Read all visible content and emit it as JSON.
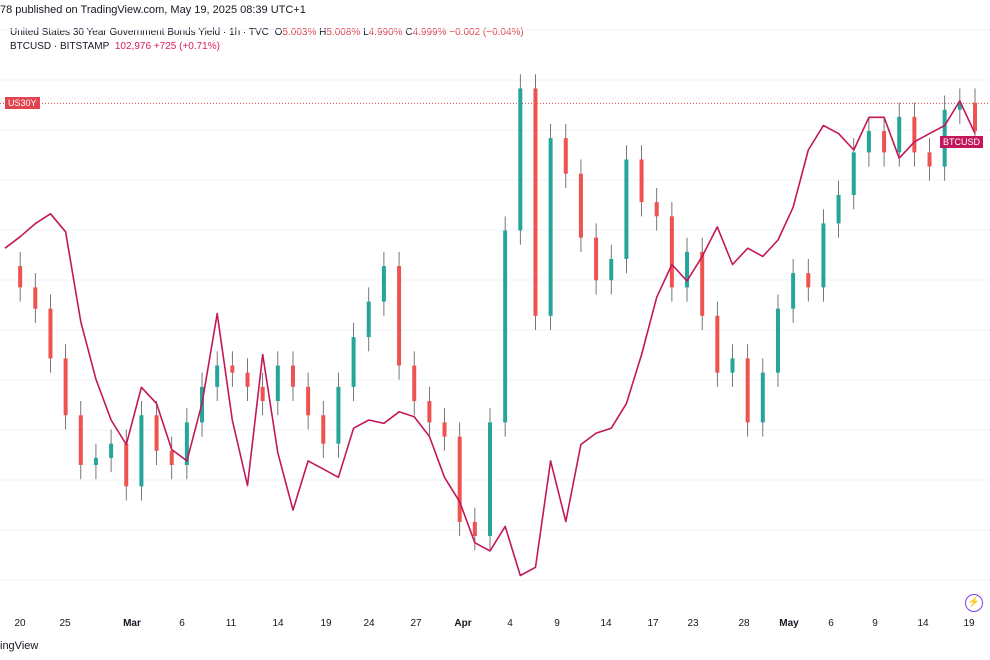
{
  "header": {
    "published": "78 published on TradingView.com, May 19, 2025 08:39 UTC+1"
  },
  "legend": {
    "us30y": {
      "name": "United States 30 Year Government Bonds Yield · 1h · TVC",
      "o_label": "O",
      "o": "5.003%",
      "h_label": "H",
      "h": "5.008%",
      "l_label": "L",
      "l": "4.990%",
      "c_label": "C",
      "c": "4.999%",
      "change": "−0.002 (−0.04%)"
    },
    "btc": {
      "name": "BTCUSD · BITSTAMP",
      "price": "102,976",
      "change": "+725 (+0.71%)"
    }
  },
  "badges": {
    "us30y": "US30Y",
    "btcusd": "BTCUSD"
  },
  "footer": "ingView",
  "colors": {
    "btc_line": "#c2185b",
    "candle_up": "#26a69a",
    "candle_down": "#ef5350",
    "grid": "#f0f3fa"
  },
  "chart_data": {
    "type": "line",
    "title": "",
    "xlabel": "",
    "ylabel": "",
    "x_ticks": [
      {
        "label": "20",
        "bold": false
      },
      {
        "label": "25",
        "bold": false
      },
      {
        "label": "Mar",
        "bold": true
      },
      {
        "label": "6",
        "bold": false
      },
      {
        "label": "11",
        "bold": false
      },
      {
        "label": "14",
        "bold": false
      },
      {
        "label": "19",
        "bold": false
      },
      {
        "label": "24",
        "bold": false
      },
      {
        "label": "27",
        "bold": false
      },
      {
        "label": "Apr",
        "bold": true
      },
      {
        "label": "4",
        "bold": false
      },
      {
        "label": "9",
        "bold": false
      },
      {
        "label": "14",
        "bold": false
      },
      {
        "label": "17",
        "bold": false
      },
      {
        "label": "23",
        "bold": false
      },
      {
        "label": "28",
        "bold": false
      },
      {
        "label": "May",
        "bold": true
      },
      {
        "label": "6",
        "bold": false
      },
      {
        "label": "9",
        "bold": false
      },
      {
        "label": "14",
        "bold": false
      },
      {
        "label": "19",
        "bold": false
      }
    ],
    "series": [
      {
        "name": "BTCUSD",
        "style": "line",
        "values": [
          96.5,
          97.2,
          98.0,
          98.6,
          97.5,
          92.0,
          88.5,
          86.0,
          84.5,
          88.0,
          87.0,
          84.2,
          83.5,
          87.0,
          92.5,
          86.0,
          82.0,
          90.0,
          84.0,
          80.5,
          83.5,
          83.0,
          82.5,
          85.5,
          86.0,
          85.8,
          86.5,
          86.2,
          85.0,
          82.5,
          81.0,
          78.5,
          78.0,
          79.5,
          76.5,
          77.0,
          83.5,
          79.8,
          84.5,
          85.2,
          85.5,
          87.0,
          90.0,
          93.5,
          95.5,
          94.5,
          96.0,
          97.8,
          95.5,
          96.5,
          96.0,
          97.0,
          99.0,
          102.5,
          104.0,
          103.5,
          102.5,
          104.5,
          104.5,
          102.0,
          103.0,
          103.5,
          104.0,
          105.5,
          103.5
        ]
      },
      {
        "name": "US30Y",
        "style": "candles",
        "values": [
          4.77,
          4.74,
          4.71,
          4.64,
          4.56,
          4.49,
          4.5,
          4.52,
          4.46,
          4.56,
          4.51,
          4.49,
          4.55,
          4.6,
          4.63,
          4.62,
          4.6,
          4.58,
          4.63,
          4.6,
          4.56,
          4.52,
          4.6,
          4.67,
          4.72,
          4.77,
          4.63,
          4.58,
          4.55,
          4.53,
          4.41,
          4.39,
          4.55,
          4.82,
          5.02,
          4.7,
          4.95,
          4.9,
          4.81,
          4.75,
          4.78,
          4.92,
          4.86,
          4.84,
          4.74,
          4.79,
          4.7,
          4.62,
          4.64,
          4.55,
          4.62,
          4.71,
          4.76,
          4.74,
          4.83,
          4.87,
          4.93,
          4.96,
          4.93,
          4.98,
          4.93,
          4.91,
          4.99,
          5.0,
          4.96
        ]
      }
    ],
    "markers": {
      "us30y_last": 4.999,
      "btcusd_last": 102976
    },
    "grid": true
  }
}
